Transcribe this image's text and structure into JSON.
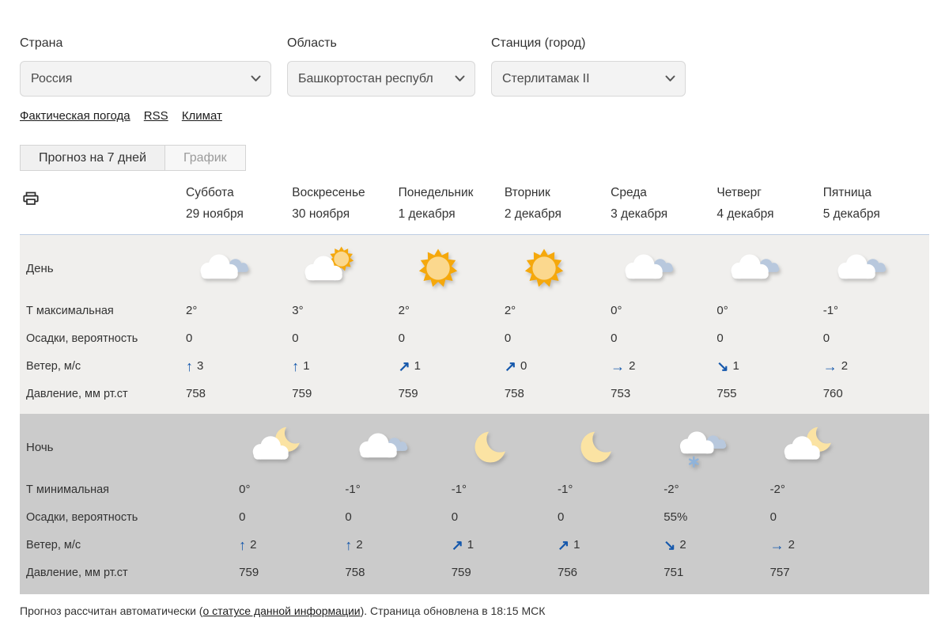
{
  "selectors": {
    "country": {
      "label": "Страна",
      "value": "Россия"
    },
    "region": {
      "label": "Область",
      "value": "Башкортостан республ"
    },
    "station": {
      "label": "Станция (город)",
      "value": "Стерлитамак II"
    }
  },
  "links": [
    {
      "label": "Фактическая погода"
    },
    {
      "label": "RSS"
    },
    {
      "label": "Климат"
    }
  ],
  "tabs": [
    {
      "label": "Прогноз на 7 дней",
      "active": true
    },
    {
      "label": "График",
      "active": false
    }
  ],
  "icons": {
    "print": "printer-icon",
    "select_chevron": "chevron-down-icon"
  },
  "colors": {
    "day_bg": "#F0EFED",
    "night_bg": "#CBCBCB",
    "wind_arrow": "#1558AC",
    "sun": "#F5A80C",
    "sun_core": "#FBD88E",
    "moon": "#FBE3A3",
    "back_cloud": "#B8C8DD",
    "snowflake": "#8FB3DA",
    "day_border": "#BCCCE2"
  },
  "forecast": {
    "days": [
      {
        "name": "Суббота",
        "date": "29 ноября"
      },
      {
        "name": "Воскресенье",
        "date": "30 ноября"
      },
      {
        "name": "Понедельник",
        "date": "1 декабря"
      },
      {
        "name": "Вторник",
        "date": "2 декабря"
      },
      {
        "name": "Среда",
        "date": "3 декабря"
      },
      {
        "name": "Четверг",
        "date": "4 декабря"
      },
      {
        "name": "Пятница",
        "date": "5 декабря"
      }
    ],
    "day": {
      "label": "День",
      "icons": [
        "cloudy",
        "cloud-sun",
        "sun",
        "sun",
        "cloudy",
        "cloudy",
        "cloudy"
      ],
      "rows": [
        {
          "name": "temperature-max",
          "label": "Т максимальная",
          "values": [
            "2°",
            "3°",
            "2°",
            "2°",
            "0°",
            "0°",
            "-1°"
          ]
        },
        {
          "name": "precipitation",
          "label": "Осадки, вероятность",
          "values": [
            "0",
            "0",
            "0",
            "0",
            "0",
            "0",
            "0"
          ]
        },
        {
          "name": "wind",
          "label": "Ветер, м/с",
          "type": "wind",
          "directions": [
            "up",
            "up",
            "up-right",
            "up-right",
            "right",
            "down-right",
            "right"
          ],
          "values": [
            "3",
            "1",
            "1",
            "0",
            "2",
            "1",
            "2"
          ]
        },
        {
          "name": "pressure",
          "label": "Давление, мм рт.ст",
          "values": [
            "758",
            "759",
            "759",
            "758",
            "753",
            "755",
            "760"
          ]
        }
      ]
    },
    "night": {
      "label": "Ночь",
      "offset": true,
      "icons": [
        "cloud-moon",
        "cloudy",
        "moon",
        "moon",
        "cloud-snow",
        "cloud-moon"
      ],
      "rows": [
        {
          "name": "temperature-min",
          "label": "Т минимальная",
          "values": [
            "0°",
            "-1°",
            "-1°",
            "-1°",
            "-2°",
            "-2°"
          ]
        },
        {
          "name": "precipitation",
          "label": "Осадки, вероятность",
          "values": [
            "0",
            "0",
            "0",
            "0",
            "55%",
            "0"
          ]
        },
        {
          "name": "wind",
          "label": "Ветер, м/с",
          "type": "wind",
          "directions": [
            "up",
            "up",
            "up-right",
            "up-right",
            "down-right",
            "right"
          ],
          "values": [
            "2",
            "2",
            "1",
            "1",
            "2",
            "2"
          ]
        },
        {
          "name": "pressure",
          "label": "Давление, мм рт.ст",
          "values": [
            "759",
            "758",
            "759",
            "756",
            "751",
            "757"
          ]
        }
      ]
    }
  },
  "footer": {
    "before_link": "Прогноз рассчитан автоматически (",
    "link": "о статусе данной информации",
    "after_link": "). Страница обновлена в 18:15 МСК"
  }
}
